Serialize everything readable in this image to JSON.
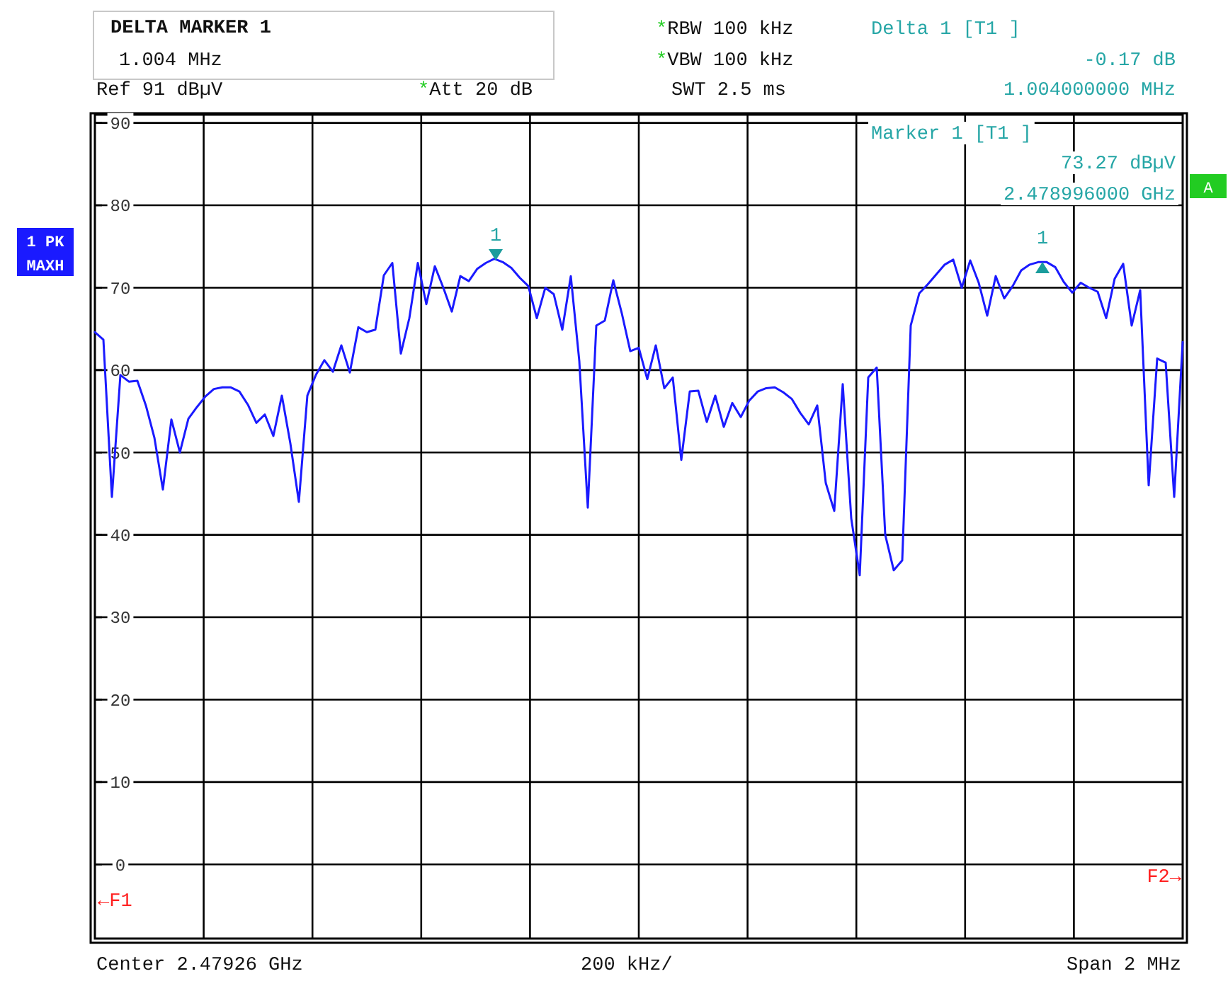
{
  "chart_data": {
    "type": "line",
    "categories": [
      null,
      null,
      null,
      null,
      null,
      null,
      null,
      null,
      null,
      null,
      null,
      null,
      null,
      null,
      null,
      null,
      null,
      null,
      null,
      null,
      null,
      null,
      null,
      null,
      null,
      null,
      null,
      null,
      null,
      null,
      null,
      null,
      null,
      null,
      null,
      null,
      null,
      null,
      null,
      null,
      null,
      null,
      null,
      null,
      null,
      null,
      null,
      null,
      null,
      null,
      null,
      null,
      null,
      null,
      null,
      null,
      null,
      null,
      null,
      null,
      null,
      null,
      null,
      null,
      null,
      null,
      null,
      null,
      null,
      null,
      null,
      null,
      null,
      null,
      null,
      null,
      null,
      null,
      null,
      null,
      null,
      null,
      null,
      null,
      null,
      null,
      null,
      null,
      null,
      null,
      null,
      null,
      null,
      null,
      null,
      null,
      null,
      null,
      null,
      null,
      null,
      null,
      null,
      null,
      null,
      null,
      null,
      null,
      null,
      null,
      null,
      null,
      null,
      null,
      null,
      null,
      null,
      null,
      null,
      null,
      null,
      null,
      null,
      null,
      null,
      null,
      null,
      null,
      null
    ],
    "ylim": [
      -9,
      91
    ],
    "yticks": [
      0,
      10,
      20,
      30,
      40,
      50,
      60,
      70,
      80,
      90
    ],
    "tick_labels": "y",
    "grid": true,
    "marker": "none",
    "line_style": "solid",
    "series": [
      {
        "color": "#1a1aff",
        "values": [
          64.6,
          63.7,
          44.6,
          59.4,
          58.6,
          58.7,
          55.7,
          51.8,
          45.5,
          54,
          50,
          54.1,
          55.5,
          56.8,
          57.7,
          57.9,
          57.9,
          57.4,
          55.8,
          53.6,
          54.6,
          52,
          56.9,
          51.1,
          44,
          56.9,
          59.4,
          61.2,
          59.8,
          63,
          59.7,
          65.2,
          64.6,
          64.9,
          71.5,
          73,
          62,
          66.3,
          73,
          68,
          72.6,
          70,
          67.1,
          71.4,
          70.8,
          72.3,
          73,
          73.5,
          73.1,
          72.4,
          71.2,
          70.2,
          66.3,
          70,
          69.2,
          64.9,
          71.4,
          61.1,
          43.3,
          65.4,
          66,
          70.9,
          66.9,
          62.3,
          62.7,
          58.9,
          63,
          57.8,
          59.1,
          49.1,
          57.4,
          57.5,
          53.7,
          56.9,
          53.1,
          56,
          54.3,
          56.3,
          57.4,
          57.8,
          57.9,
          57.3,
          56.5,
          54.8,
          53.4,
          55.7,
          46.3,
          42.9,
          58.3,
          42,
          35.1,
          59.1,
          60.3,
          40,
          35.7,
          36.9,
          65.4,
          69.3,
          70.4,
          71.6,
          72.8,
          73.4,
          70,
          73.3,
          70.6,
          66.6,
          71.4,
          68.7,
          70.2,
          72.1,
          72.8,
          73.1,
          73.1,
          72.5,
          70.7,
          69.4,
          70.6,
          70,
          69.5,
          66.3,
          71.1,
          72.9,
          65.4,
          69.7,
          46,
          61.4,
          60.9,
          44.6,
          63.4
        ]
      }
    ],
    "annotations": [
      "DELTA MARKER 1",
      "1.004 MHz",
      "Ref  91 dBµV",
      "*Att  20 dB",
      "*RBW 100 kHz",
      "*VBW 100 kHz",
      "SWT 2.5 ms",
      "Delta 1 [T1 ]",
      "-0.17 dB",
      "1.004000000 MHz",
      "Marker 1 [T1 ]",
      "73.27 dBµV",
      "2.478996000 GHz",
      "A",
      "1 PK",
      "MAXH",
      "←F1",
      "F2→",
      "Center 2.47926 GHz",
      "200 kHz/",
      "Span 2 MHz",
      "1",
      "1"
    ]
  }
}
